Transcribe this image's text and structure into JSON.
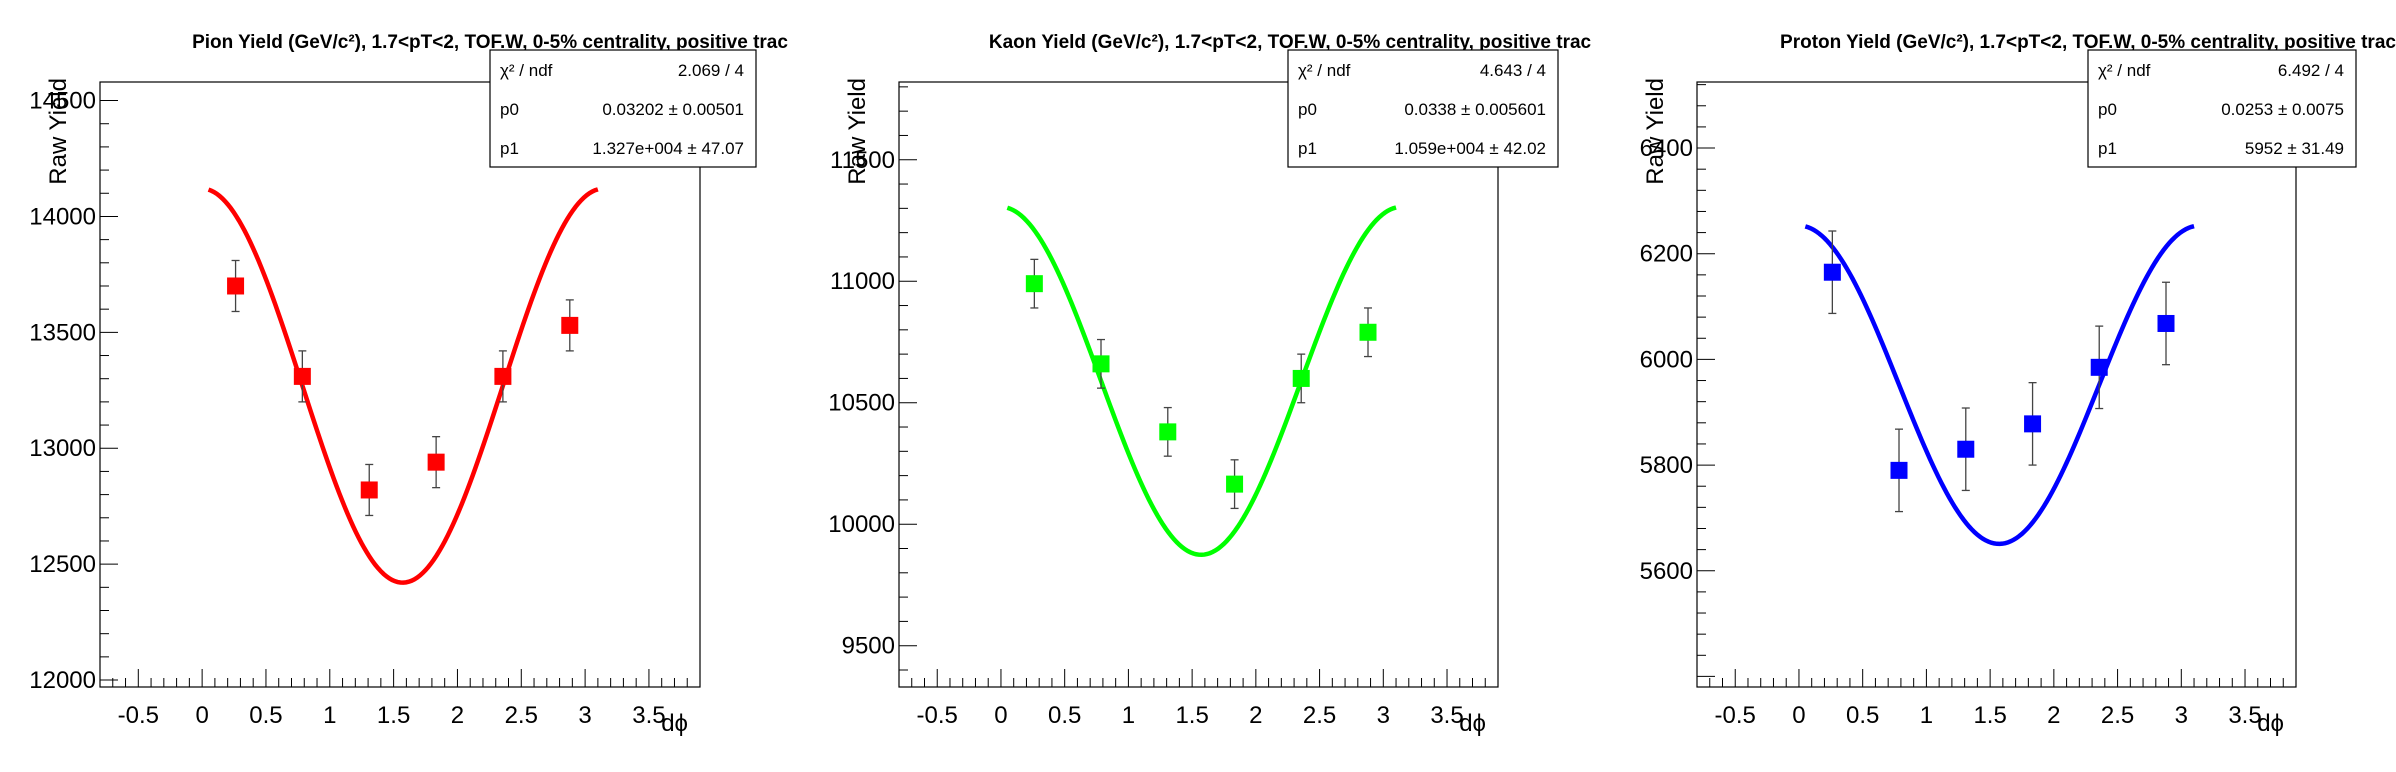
{
  "chart_data": [
    {
      "type": "scatter",
      "title": "Pion Yield (GeV/c²), 1.7<pT<2, TOF.W, 0-5% centrality, positive trac",
      "xlabel": "dϕ",
      "ylabel": "Raw Yield",
      "xlim": [
        -0.8,
        3.9
      ],
      "ylim": [
        11970,
        14580
      ],
      "xticks": [
        -0.5,
        0,
        0.5,
        1,
        1.5,
        2,
        2.5,
        3,
        3.5
      ],
      "xtick_labels": [
        "-0.5",
        "0",
        "0.5",
        "1",
        "1.5",
        "2",
        "2.5",
        "3",
        "3.5"
      ],
      "yticks": [
        12000,
        12500,
        13000,
        13500,
        14000,
        14500
      ],
      "ytick_labels": [
        "12000",
        "12500",
        "13000",
        "13500",
        "14000",
        "14500"
      ],
      "color": "#ff0000",
      "points": [
        {
          "x": 0.262,
          "y": 13700,
          "err": 110
        },
        {
          "x": 0.785,
          "y": 13310,
          "err": 110
        },
        {
          "x": 1.309,
          "y": 12820,
          "err": 110
        },
        {
          "x": 1.833,
          "y": 12940,
          "err": 110
        },
        {
          "x": 2.356,
          "y": 13310,
          "err": 110
        },
        {
          "x": 2.88,
          "y": 13530,
          "err": 110
        }
      ],
      "fit": {
        "p0": 0.03202,
        "p1": 13270,
        "x_range": [
          0.05,
          3.1
        ]
      },
      "stats": [
        {
          "label": "χ² / ndf",
          "value": "2.069 / 4"
        },
        {
          "label": "p0",
          "value": "0.03202 ± 0.00501"
        },
        {
          "label": "p1",
          "value": "1.327e+004 ± 47.07"
        }
      ]
    },
    {
      "type": "scatter",
      "title": "Kaon Yield (GeV/c²), 1.7<pT<2, TOF.W, 0-5% centrality, positive trac",
      "xlabel": "dϕ",
      "ylabel": "Raw Yield",
      "xlim": [
        -0.8,
        3.9
      ],
      "ylim": [
        9330,
        11820
      ],
      "xticks": [
        -0.5,
        0,
        0.5,
        1,
        1.5,
        2,
        2.5,
        3,
        3.5
      ],
      "xtick_labels": [
        "-0.5",
        "0",
        "0.5",
        "1",
        "1.5",
        "2",
        "2.5",
        "3",
        "3.5"
      ],
      "yticks": [
        9500,
        10000,
        10500,
        11000,
        11500
      ],
      "ytick_labels": [
        "9500",
        "10000",
        "10500",
        "11000",
        "11500"
      ],
      "color": "#00ff00",
      "points": [
        {
          "x": 0.262,
          "y": 10990,
          "err": 100
        },
        {
          "x": 0.785,
          "y": 10660,
          "err": 100
        },
        {
          "x": 1.309,
          "y": 10380,
          "err": 100
        },
        {
          "x": 1.833,
          "y": 10165,
          "err": 100
        },
        {
          "x": 2.356,
          "y": 10600,
          "err": 100
        },
        {
          "x": 2.88,
          "y": 10790,
          "err": 100
        }
      ],
      "fit": {
        "p0": 0.0338,
        "p1": 10590,
        "x_range": [
          0.05,
          3.1
        ]
      },
      "stats": [
        {
          "label": "χ² / ndf",
          "value": "4.643 / 4"
        },
        {
          "label": "p0",
          "value": "0.0338 ± 0.005601"
        },
        {
          "label": "p1",
          "value": "1.059e+004 ± 42.02"
        }
      ]
    },
    {
      "type": "scatter",
      "title": "Proton Yield (GeV/c²), 1.7<pT<2, TOF.W, 0-5% centrality, positive trac",
      "xlabel": "dϕ",
      "ylabel": "Raw Yield",
      "xlim": [
        -0.8,
        3.9
      ],
      "ylim": [
        5380,
        6525
      ],
      "xticks": [
        -0.5,
        0,
        0.5,
        1,
        1.5,
        2,
        2.5,
        3,
        3.5
      ],
      "xtick_labels": [
        "-0.5",
        "0",
        "0.5",
        "1",
        "1.5",
        "2",
        "2.5",
        "3",
        "3.5"
      ],
      "yticks": [
        5600,
        5800,
        6000,
        6200,
        6400
      ],
      "ytick_labels": [
        "5600",
        "5800",
        "6000",
        "6200",
        "6400"
      ],
      "color": "#0000ff",
      "points": [
        {
          "x": 0.262,
          "y": 6165,
          "err": 78
        },
        {
          "x": 0.785,
          "y": 5790,
          "err": 78
        },
        {
          "x": 1.309,
          "y": 5830,
          "err": 78
        },
        {
          "x": 1.833,
          "y": 5878,
          "err": 78
        },
        {
          "x": 2.356,
          "y": 5985,
          "err": 78
        },
        {
          "x": 2.88,
          "y": 6068,
          "err": 78
        }
      ],
      "fit": {
        "p0": 0.0253,
        "p1": 5952,
        "x_range": [
          0.05,
          3.1
        ]
      },
      "stats": [
        {
          "label": "χ² / ndf",
          "value": "6.492 / 4"
        },
        {
          "label": "p0",
          "value": "0.0253 ± 0.0075"
        },
        {
          "label": "p1",
          "value": "5952 ± 31.49"
        }
      ]
    }
  ]
}
